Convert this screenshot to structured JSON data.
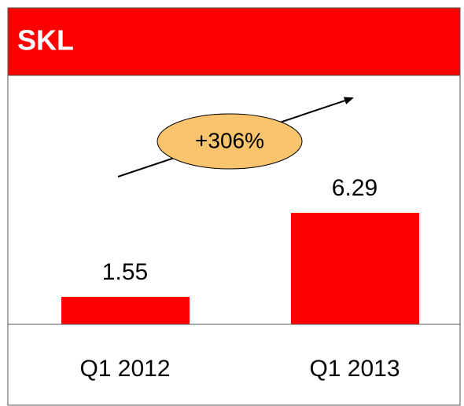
{
  "chart_data": {
    "type": "bar",
    "title": "SKL",
    "categories": [
      "Q1 2012",
      "Q1 2013"
    ],
    "values": [
      1.55,
      6.29
    ],
    "color": "#ff0000",
    "ylim": [
      0,
      14
    ],
    "annotations": [
      "+306%"
    ]
  }
}
